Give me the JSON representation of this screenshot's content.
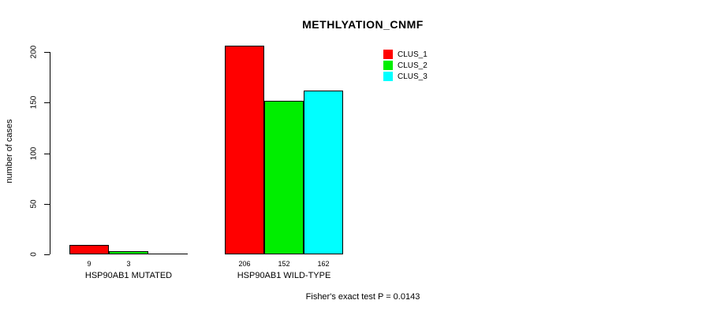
{
  "chart_data": {
    "type": "bar",
    "title": "METHLYATION_CNMF",
    "xlabel": "",
    "ylabel": "number of cases",
    "footnote": "Fisher's exact test P = 0.0143",
    "categories": [
      "HSP90AB1 MUTATED",
      "HSP90AB1 WILD-TYPE"
    ],
    "series": [
      {
        "name": "CLUS_1",
        "color": "#FF0000",
        "values": [
          9,
          206
        ]
      },
      {
        "name": "CLUS_2",
        "color": "#00EE00",
        "values": [
          3,
          152
        ]
      },
      {
        "name": "CLUS_3",
        "color": "#00FFFF",
        "values": [
          0,
          162
        ]
      }
    ],
    "bar_value_labels": [
      [
        "9",
        "3",
        ""
      ],
      [
        "206",
        "152",
        "162"
      ]
    ],
    "ylim": [
      0,
      200
    ],
    "yticks": [
      0,
      50,
      100,
      150,
      200
    ],
    "grid": false,
    "legend_position": "top-right",
    "axis_color": "#000000",
    "background_color": "#FFFFFF"
  }
}
